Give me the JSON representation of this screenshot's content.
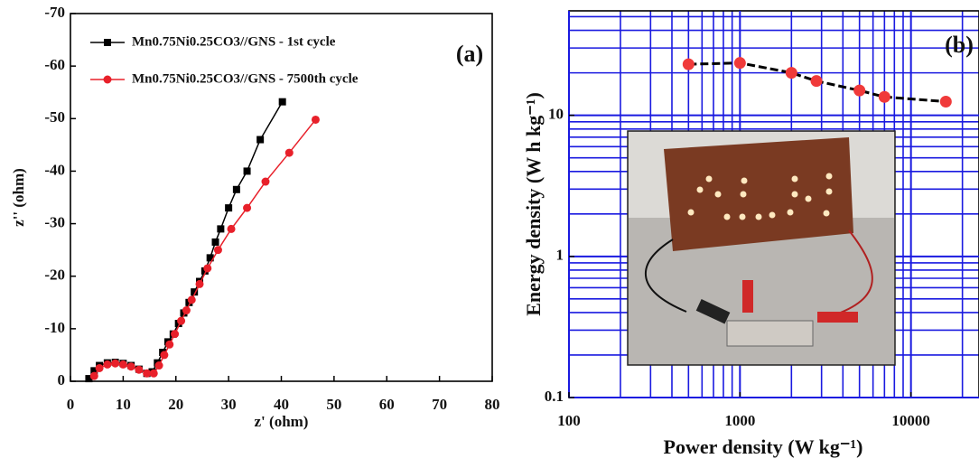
{
  "chart_data": [
    {
      "type": "line",
      "panel_label": "(a)",
      "x_label": "z' (ohm)",
      "y_label": "z'' (ohm)",
      "xlim": [
        0,
        80
      ],
      "xticks": [
        0,
        10,
        20,
        30,
        40,
        50,
        60,
        70,
        80
      ],
      "ylim": [
        0,
        -70
      ],
      "yticks": [
        0,
        -10,
        -20,
        -30,
        -40,
        -50,
        -60,
        -70
      ],
      "legend": "upper left",
      "series": [
        {
          "name": "Mn0.75Ni0.25CO3//GNS - 1st cycle",
          "color": "#000000",
          "marker": "square",
          "x": [
            3.5,
            4.5,
            5.5,
            7,
            8.5,
            10,
            11.5,
            13,
            14.5,
            15.5,
            16.5,
            17.5,
            18.5,
            19.5,
            20.5,
            21.5,
            22.5,
            23.5,
            24.5,
            25.5,
            26.5,
            27.5,
            28.5,
            30,
            31.5,
            33.5,
            36,
            40.2
          ],
          "values": [
            -0.5,
            -2,
            -3,
            -3.5,
            -3.6,
            -3.4,
            -3,
            -2.3,
            -1.5,
            -1.8,
            -3.5,
            -5.5,
            -7.5,
            -9,
            -11,
            -13,
            -15,
            -17,
            -19,
            -21,
            -23.5,
            -26.5,
            -29,
            -33,
            -36.5,
            -40,
            -46,
            -53.2
          ]
        },
        {
          "name": "Mn0.75Ni0.25CO3//GNS - 7500th cycle",
          "color": "#e8202a",
          "marker": "circle",
          "x": [
            4.5,
            5.5,
            7,
            8.5,
            10,
            11.5,
            13,
            14.5,
            15.8,
            16.8,
            17.8,
            18.8,
            19.8,
            21,
            22,
            23,
            24.5,
            26,
            28,
            30.5,
            33.5,
            37,
            41.5,
            46.5
          ],
          "values": [
            -1,
            -2.5,
            -3.2,
            -3.4,
            -3.2,
            -2.8,
            -2.2,
            -1.5,
            -1.5,
            -3,
            -5,
            -7,
            -9,
            -11.5,
            -13.5,
            -15.5,
            -18.5,
            -21.5,
            -25,
            -29,
            -33,
            -38,
            -43.5,
            -49.8
          ]
        }
      ]
    },
    {
      "type": "line",
      "panel_label": "(b)",
      "x_label": "Power density (W kg⁻¹)",
      "y_label": "Energy density (W h kg⁻¹)",
      "log_x": true,
      "log_y": true,
      "grid": true,
      "grid_color": "#1a1ae0",
      "xlim": [
        100,
        25000
      ],
      "xticks": [
        100,
        1000,
        10000
      ],
      "ylim": [
        0.1,
        55
      ],
      "yticks": [
        0.1,
        1,
        10
      ],
      "line_color": "#000000",
      "color": "#f03a3a",
      "x": [
        500,
        1000,
        2000,
        2800,
        5000,
        7000,
        16000
      ],
      "values": [
        23,
        23.5,
        20,
        17.5,
        15,
        13.5,
        12.5
      ]
    }
  ]
}
